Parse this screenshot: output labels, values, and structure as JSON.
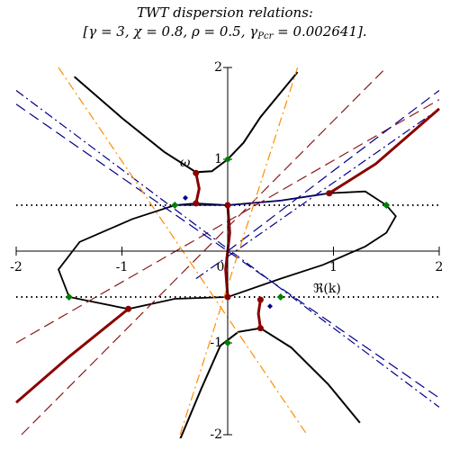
{
  "chart_data": {
    "type": "line",
    "title": "TWT dispersion relations:",
    "subtitle_parts": [
      "[γ = 3, χ = 0.8, ρ = 0.5, γ",
      "Pcr",
      " = 0.002641]."
    ],
    "annotations": [
      "ω",
      "ℜ(k)"
    ],
    "xlim": [
      -2,
      2
    ],
    "ylim": [
      -2,
      2
    ],
    "xticks": [
      -2,
      -1,
      0,
      1,
      2
    ],
    "yticks": [
      -2,
      -1,
      1,
      2
    ],
    "series": [
      {
        "color": "#000000",
        "style": "solid",
        "width": 2,
        "x": [
          -1.45,
          -1.0,
          -0.6,
          -0.3,
          -0.15,
          0,
          0.15,
          0.31,
          0.66
        ],
        "y": [
          1.9,
          1.45,
          1.08,
          0.86,
          0.87,
          1.0,
          1.18,
          1.46,
          1.95
        ]
      },
      {
        "color": "#000000",
        "style": "solid",
        "width": 2,
        "x": [
          -0.45,
          -0.25,
          -0.07,
          0.1,
          0.31,
          0.6,
          0.95,
          1.25
        ],
        "y": [
          -2.05,
          -1.5,
          -1.03,
          -0.88,
          -0.84,
          -1.05,
          -1.45,
          -1.87
        ]
      },
      {
        "color": "#000000",
        "style": "solid",
        "width": 1.8,
        "x": [
          0,
          0.5,
          0.96,
          1.3,
          1.5,
          1.59,
          1.5,
          1.3,
          0.9,
          0.5,
          0,
          -0.5,
          -0.94,
          -1.5,
          -1.6,
          -1.4,
          -0.9,
          -0.5,
          -0.3,
          0
        ],
        "y": [
          0.5,
          0.55,
          0.63,
          0.65,
          0.5,
          0.38,
          0.2,
          0.05,
          -0.15,
          -0.3,
          -0.5,
          -0.52,
          -0.63,
          -0.5,
          -0.2,
          0.1,
          0.35,
          0.5,
          0.52,
          0.5
        ]
      },
      {
        "color": "#00008b",
        "style": "solid",
        "width": 1.2,
        "x": [
          -0.5,
          0,
          0.5,
          0.96
        ],
        "y": [
          0.5,
          0.5,
          0.55,
          0.63
        ]
      },
      {
        "color": "#8b1a1a",
        "style": "dash",
        "width": 1.2,
        "x": [
          -2,
          2
        ],
        "y": [
          -1.0,
          1.65
        ]
      },
      {
        "color": "#8b1a1a",
        "style": "dash",
        "width": 1.2,
        "x": [
          -1.95,
          1.5
        ],
        "y": [
          -2,
          2
        ]
      },
      {
        "color": "#00008b",
        "style": "dash",
        "width": 1.2,
        "x": [
          -2,
          2
        ],
        "y": [
          1.6,
          -1.6
        ]
      },
      {
        "color": "#00008b",
        "style": "dashdot",
        "width": 1.2,
        "x": [
          -2,
          2
        ],
        "y": [
          1.75,
          -1.7
        ]
      },
      {
        "color": "#00008b",
        "style": "dash",
        "width": 1.2,
        "x": [
          0,
          2
        ],
        "y": [
          0,
          1.75
        ]
      },
      {
        "color": "#00008b",
        "style": "dashdot",
        "width": 1.2,
        "x": [
          -0.3,
          2
        ],
        "y": [
          -0.3,
          1.55
        ]
      },
      {
        "color": "#ff8c00",
        "style": "dashdot",
        "width": 1.2,
        "x": [
          -1.6,
          0.75
        ],
        "y": [
          2,
          -2
        ]
      },
      {
        "color": "#ff8c00",
        "style": "dashdot",
        "width": 1.2,
        "x": [
          -0.45,
          0.66
        ],
        "y": [
          -2,
          2
        ]
      },
      {
        "color": "#8b0000",
        "style": "solid",
        "width": 3,
        "x": [
          -2,
          -1.5,
          -0.94
        ],
        "y": [
          -1.65,
          -1.15,
          -0.63
        ]
      },
      {
        "color": "#8b0000",
        "style": "solid",
        "width": 3,
        "x": [
          0.96,
          1.4,
          2
        ],
        "y": [
          0.63,
          0.95,
          1.55
        ]
      },
      {
        "color": "#8b0000",
        "style": "solid",
        "width": 3,
        "x": [
          -0.3,
          -0.27,
          -0.3
        ],
        "y": [
          0.85,
          0.68,
          0.52
        ]
      },
      {
        "color": "#8b0000",
        "style": "solid",
        "width": 3,
        "x": [
          0,
          0.02,
          -0.02,
          0
        ],
        "y": [
          0.5,
          0.2,
          -0.2,
          -0.5
        ]
      },
      {
        "color": "#8b0000",
        "style": "solid",
        "width": 3,
        "x": [
          0.31,
          0.29,
          0.31
        ],
        "y": [
          -0.53,
          -0.68,
          -0.84
        ]
      }
    ],
    "points": [
      {
        "color": "#8b0000",
        "shape": "circle",
        "x": [
          -0.94,
          0.96,
          -0.3,
          -0.3,
          0,
          0,
          0.31,
          0.31
        ],
        "y": [
          -0.63,
          0.63,
          0.85,
          0.52,
          0.5,
          -0.5,
          -0.53,
          -0.84
        ]
      },
      {
        "color": "#008000",
        "shape": "diamond",
        "x": [
          0,
          0,
          -0.5,
          1.5,
          -1.5,
          0.5
        ],
        "y": [
          1,
          -1,
          0.5,
          0.5,
          -0.5,
          -0.5
        ]
      },
      {
        "color": "#00008b",
        "shape": "diamond",
        "x": [
          -0.4,
          0.4
        ],
        "y": [
          0.58,
          -0.6
        ]
      }
    ],
    "hlines": [
      0.5,
      -0.5
    ]
  }
}
